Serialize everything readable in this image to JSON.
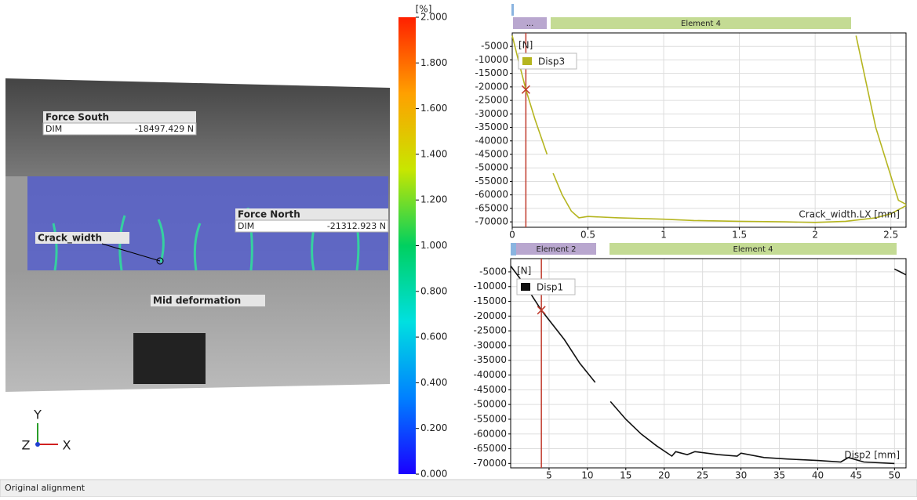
{
  "image_panel": {
    "annotations": [
      {
        "title": "Force South",
        "rows": [
          [
            "DIM",
            "-18497.429 N"
          ]
        ]
      },
      {
        "title": "Force North",
        "rows": [
          [
            "DIM",
            "-21312.923 N"
          ]
        ]
      }
    ],
    "labels": [
      "Crack_width",
      "Mid deformation"
    ],
    "triad": [
      "Y",
      "Z",
      "X"
    ]
  },
  "colorbar": {
    "unit": "[%]",
    "ylim": [
      0,
      2
    ],
    "colors": [
      "#1a00ff",
      "#0080ff",
      "#00e0e0",
      "#00d060",
      "#c8e600",
      "#ffa000",
      "#ff2000"
    ],
    "ticks": [
      {
        "value": 0,
        "label": "0.000"
      },
      {
        "value": 0.2,
        "label": "0.200"
      },
      {
        "value": 0.4,
        "label": "0.400"
      },
      {
        "value": 0.6,
        "label": "0.600"
      },
      {
        "value": 0.8,
        "label": "0.800"
      },
      {
        "value": 1,
        "label": "1.000"
      },
      {
        "value": 1.2,
        "label": "1.200"
      },
      {
        "value": 1.4,
        "label": "1.400"
      },
      {
        "value": 1.6,
        "label": "1.600"
      },
      {
        "value": 1.8,
        "label": "1.800"
      },
      {
        "value": 2,
        "label": "2.000"
      }
    ]
  },
  "chart_data": [
    {
      "type": "line",
      "y_label": "[N]",
      "x_label": "Crack_width.LX [mm]",
      "segments": [
        {
          "label": "...",
          "color": "#b9a7cf"
        },
        {
          "label": "Element 4",
          "color": "#c4db94"
        }
      ],
      "xlim": [
        0,
        2.6
      ],
      "ylim": [
        -72000,
        0
      ],
      "xticks": [
        0,
        0.5,
        1,
        1.5,
        2,
        2.5
      ],
      "yticks": [
        -5000,
        -10000,
        -15000,
        -20000,
        -25000,
        -30000,
        -35000,
        -40000,
        -45000,
        -50000,
        -55000,
        -60000,
        -65000,
        -70000
      ],
      "grid": true,
      "cursor": {
        "x": 0.09,
        "y": -21000,
        "color": "#c0392b"
      },
      "series": [
        {
          "name": "Disp3",
          "color": "#b5b520",
          "x": [
            0,
            0.04,
            0.09,
            0.15,
            0.23,
            null,
            0.27,
            0.33,
            0.39,
            0.42,
            0.44,
            0.5,
            0.7,
            1.0,
            1.2,
            1.5,
            1.8,
            2.0,
            2.2,
            2.4,
            2.5,
            2.6,
            null,
            2.27,
            2.4,
            2.55,
            2.6
          ],
          "values": [
            -1000,
            -10000,
            -21000,
            -32000,
            -45000,
            null,
            -52000,
            -60000,
            -66000,
            -67500,
            -68500,
            -68000,
            -68500,
            -69000,
            -69500,
            -69800,
            -70000,
            -70200,
            -69800,
            -68500,
            -67000,
            -64000,
            null,
            -1000,
            -35000,
            -62000,
            -63500
          ]
        }
      ]
    },
    {
      "type": "line",
      "y_label": "[N]",
      "x_label": "Disp2 [mm]",
      "segments": [
        {
          "label": "Element 2",
          "color": "#b9a7cf"
        },
        {
          "label": "Element 4",
          "color": "#c4db94"
        }
      ],
      "xlim": [
        0,
        51.5
      ],
      "ylim": [
        -71500,
        -500
      ],
      "xticks": [
        5,
        10,
        15,
        20,
        25,
        30,
        35,
        40,
        45,
        50
      ],
      "yticks": [
        -5000,
        -10000,
        -15000,
        -20000,
        -25000,
        -30000,
        -35000,
        -40000,
        -45000,
        -50000,
        -55000,
        -60000,
        -65000,
        -70000
      ],
      "grid": true,
      "cursor": {
        "x": 4,
        "y": -18000,
        "color": "#c0392b"
      },
      "series": [
        {
          "name": "Disp1",
          "color": "#111111",
          "x": [
            0,
            2,
            4,
            7,
            9,
            11,
            null,
            13,
            15,
            17,
            19,
            21,
            21.5,
            23,
            24,
            27,
            29.5,
            30,
            33,
            36,
            40,
            43,
            44,
            46,
            50,
            null,
            50,
            51.5
          ],
          "values": [
            -3000,
            -10000,
            -18000,
            -28000,
            -36000,
            -42500,
            null,
            -49000,
            -55000,
            -60000,
            -64000,
            -67500,
            -66000,
            -67000,
            -66000,
            -67000,
            -67500,
            -66500,
            -68000,
            -68500,
            -69000,
            -69500,
            -68000,
            -69500,
            -70000,
            null,
            -4000,
            -6000
          ]
        }
      ]
    }
  ],
  "status_bar": "Original alignment"
}
